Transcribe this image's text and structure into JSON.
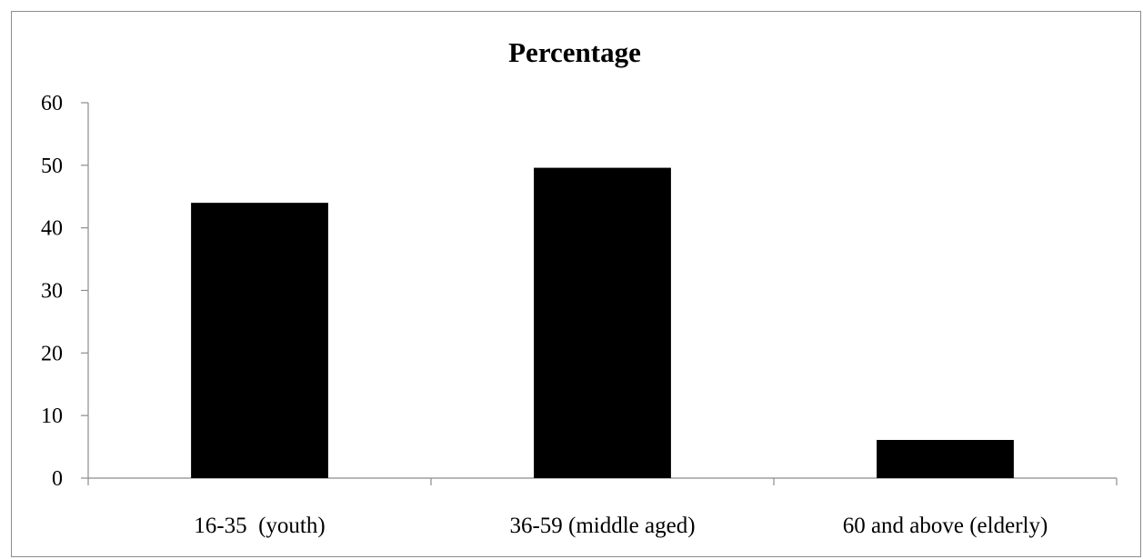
{
  "chart_data": {
    "type": "bar",
    "title": "Percentage",
    "categories": [
      "16-35  (youth)",
      "36-59 (middle aged)",
      "60 and above (elderly)"
    ],
    "values": [
      44,
      49.6,
      6.1
    ],
    "ylim": [
      0,
      60
    ],
    "yticks": [
      "0",
      "10",
      "20",
      "30",
      "40",
      "50",
      "60"
    ],
    "xlabel": "",
    "ylabel": "",
    "grid": false,
    "legend": "none",
    "bar_color": "#000000",
    "axis_color": "#8c8c8c"
  }
}
